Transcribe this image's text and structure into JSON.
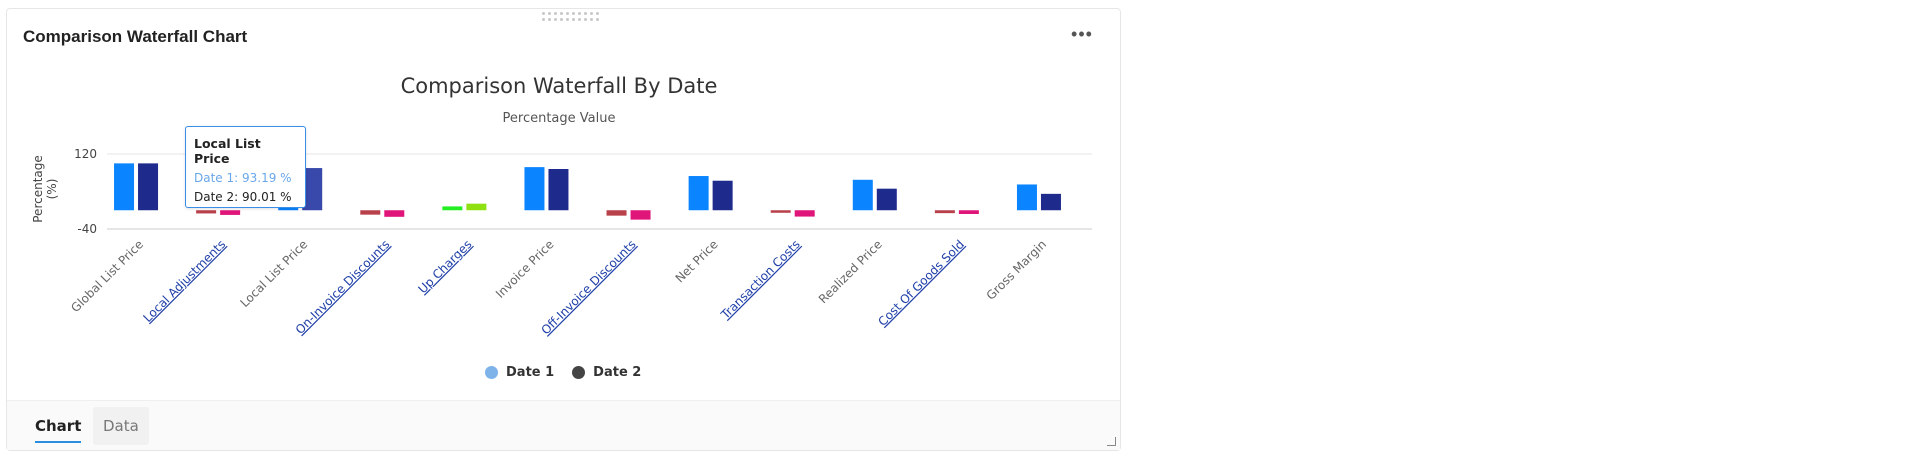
{
  "card": {
    "title": "Comparison Waterfall Chart",
    "more_label": "•••"
  },
  "tooltip": {
    "title": "Local List Price",
    "row1": "Date 1: 93.19 %",
    "row2": "Date 2: 90.01 %"
  },
  "legend": [
    {
      "label": "Date 1",
      "color": "#7eb3ea"
    },
    {
      "label": "Date 2",
      "color": "#444444"
    }
  ],
  "tabs": [
    {
      "label": "Chart",
      "active": true
    },
    {
      "label": "Data",
      "active": false
    }
  ],
  "chart_data": {
    "type": "bar",
    "title": "Comparison Waterfall By Date",
    "subtitle": "Percentage Value",
    "ylabel": "Percentage (%)",
    "ylabel_lines": [
      "Percentage",
      "(%)"
    ],
    "ylim": [
      -40,
      120
    ],
    "yticks": [
      120,
      -40
    ],
    "grid": true,
    "legend_position": "bottom",
    "categories": [
      "Global List Price",
      "Local Adjustments",
      "Local List Price",
      "On-Invoice Discounts",
      "Up Charges",
      "Invoice Price",
      "Off-Invoice Discounts",
      "Net Price",
      "Transaction Costs",
      "Realized Price",
      "Cost Of Goods Sold",
      "Gross Margin"
    ],
    "linked_categories": [
      "Local Adjustments",
      "On-Invoice Discounts",
      "Up Charges",
      "Off-Invoice Discounts",
      "Transaction Costs",
      "Cost Of Goods Sold"
    ],
    "series": [
      {
        "name": "Date 1",
        "values": [
          100,
          -6.8,
          93.19,
          -9.4,
          8.2,
          92.0,
          -11.5,
          73.0,
          -5.4,
          65.0,
          -6.2,
          55.0
        ],
        "colors": [
          "#0a84ff",
          "#b8404a",
          "#0a84ff",
          "#b8404a",
          "#22ee22",
          "#0a84ff",
          "#b8404a",
          "#0a84ff",
          "#b8404a",
          "#0a84ff",
          "#b8404a",
          "#0a84ff"
        ]
      },
      {
        "name": "Date 2",
        "values": [
          100,
          -9.99,
          90.01,
          -14.0,
          14.0,
          88.0,
          -20.0,
          63.0,
          -13.5,
          46.0,
          -8.0,
          35.0
        ],
        "colors": [
          "#1e2a8c",
          "#e0157a",
          "#3949ab",
          "#e0157a",
          "#8fe010",
          "#1e2a8c",
          "#e0157a",
          "#1e2a8c",
          "#e0157a",
          "#1e2a8c",
          "#e0157a",
          "#1e2a8c"
        ]
      }
    ]
  }
}
